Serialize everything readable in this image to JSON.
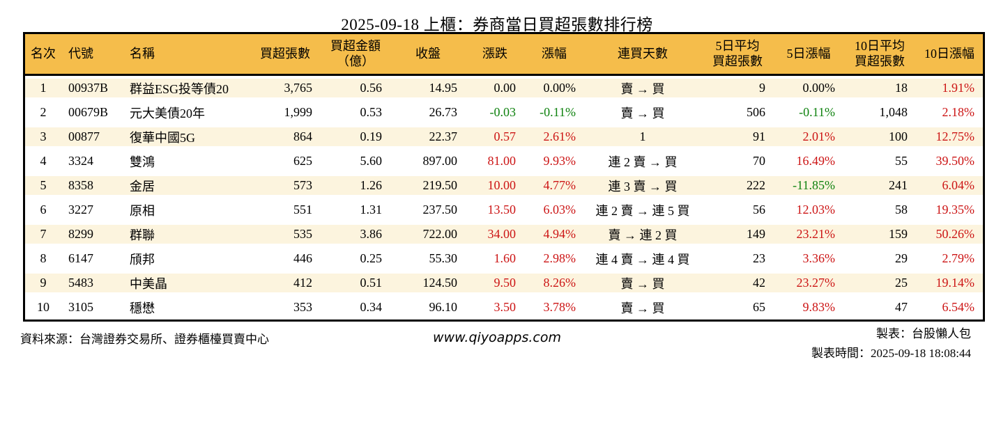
{
  "title": "2025-09-18 上櫃：券商當日買超張數排行榜",
  "colors": {
    "up_red": "#cc1414",
    "down_green": "#0f820f",
    "header_bg": "#f5bd4b",
    "row_stripe": "#fcf4de",
    "border": "#000000"
  },
  "chart_data": {
    "type": "table",
    "title": "2025-09-18 上櫃：券商當日買超張數排行榜",
    "columns": [
      {
        "key": "rank",
        "label": "名次",
        "align": "ac"
      },
      {
        "key": "code",
        "label": "代號",
        "align": "al"
      },
      {
        "key": "name",
        "label": "名稱",
        "align": "al"
      },
      {
        "key": "vol",
        "label": "買超張數",
        "align": "ar"
      },
      {
        "key": "amt",
        "label": "買超金額\n（億）",
        "align": "ar"
      },
      {
        "key": "close",
        "label": "收盤",
        "align": "ar"
      },
      {
        "key": "chg",
        "label": "漲跌",
        "align": "ar"
      },
      {
        "key": "chgp",
        "label": "漲幅",
        "align": "ar"
      },
      {
        "key": "streak",
        "label": "連買天數",
        "align": "ac"
      },
      {
        "key": "avg5",
        "label": "5日平均\n買超張數",
        "align": "ar"
      },
      {
        "key": "p5",
        "label": "5日漲幅",
        "align": "ar"
      },
      {
        "key": "avg10",
        "label": "10日平均\n買超張數",
        "align": "ar"
      },
      {
        "key": "p10",
        "label": "10日漲幅",
        "align": "ar"
      }
    ],
    "rows": [
      [
        {
          "t": "1"
        },
        {
          "t": "00937B"
        },
        {
          "t": "群益ESG投等債20"
        },
        {
          "t": "3,765"
        },
        {
          "t": "0.56"
        },
        {
          "t": "14.95"
        },
        {
          "t": "0.00"
        },
        {
          "t": "0.00%"
        },
        {
          "t": "賣 → 買"
        },
        {
          "t": "9"
        },
        {
          "t": "0.00%"
        },
        {
          "t": "18"
        },
        {
          "t": "1.91%",
          "c": "up"
        }
      ],
      [
        {
          "t": "2"
        },
        {
          "t": "00679B"
        },
        {
          "t": "元大美債20年"
        },
        {
          "t": "1,999"
        },
        {
          "t": "0.53"
        },
        {
          "t": "26.73"
        },
        {
          "t": "-0.03",
          "c": "down"
        },
        {
          "t": "-0.11%",
          "c": "down"
        },
        {
          "t": "賣 → 買"
        },
        {
          "t": "506"
        },
        {
          "t": "-0.11%",
          "c": "down"
        },
        {
          "t": "1,048"
        },
        {
          "t": "2.18%",
          "c": "up"
        }
      ],
      [
        {
          "t": "3"
        },
        {
          "t": "00877"
        },
        {
          "t": "復華中國5G"
        },
        {
          "t": "864"
        },
        {
          "t": "0.19"
        },
        {
          "t": "22.37"
        },
        {
          "t": "0.57",
          "c": "up"
        },
        {
          "t": "2.61%",
          "c": "up"
        },
        {
          "t": "1"
        },
        {
          "t": "91"
        },
        {
          "t": "2.01%",
          "c": "up"
        },
        {
          "t": "100"
        },
        {
          "t": "12.75%",
          "c": "up"
        }
      ],
      [
        {
          "t": "4"
        },
        {
          "t": "3324"
        },
        {
          "t": "雙鴻"
        },
        {
          "t": "625"
        },
        {
          "t": "5.60"
        },
        {
          "t": "897.00"
        },
        {
          "t": "81.00",
          "c": "up"
        },
        {
          "t": "9.93%",
          "c": "up"
        },
        {
          "t": "連 2 賣 → 買"
        },
        {
          "t": "70"
        },
        {
          "t": "16.49%",
          "c": "up"
        },
        {
          "t": "55"
        },
        {
          "t": "39.50%",
          "c": "up"
        }
      ],
      [
        {
          "t": "5"
        },
        {
          "t": "8358"
        },
        {
          "t": "金居"
        },
        {
          "t": "573"
        },
        {
          "t": "1.26"
        },
        {
          "t": "219.50"
        },
        {
          "t": "10.00",
          "c": "up"
        },
        {
          "t": "4.77%",
          "c": "up"
        },
        {
          "t": "連 3 賣 → 買"
        },
        {
          "t": "222"
        },
        {
          "t": "-11.85%",
          "c": "down"
        },
        {
          "t": "241"
        },
        {
          "t": "6.04%",
          "c": "up"
        }
      ],
      [
        {
          "t": "6"
        },
        {
          "t": "3227"
        },
        {
          "t": "原相"
        },
        {
          "t": "551"
        },
        {
          "t": "1.31"
        },
        {
          "t": "237.50"
        },
        {
          "t": "13.50",
          "c": "up"
        },
        {
          "t": "6.03%",
          "c": "up"
        },
        {
          "t": "連 2 賣 → 連 5 買"
        },
        {
          "t": "56"
        },
        {
          "t": "12.03%",
          "c": "up"
        },
        {
          "t": "58"
        },
        {
          "t": "19.35%",
          "c": "up"
        }
      ],
      [
        {
          "t": "7"
        },
        {
          "t": "8299"
        },
        {
          "t": "群聯"
        },
        {
          "t": "535"
        },
        {
          "t": "3.86"
        },
        {
          "t": "722.00"
        },
        {
          "t": "34.00",
          "c": "up"
        },
        {
          "t": "4.94%",
          "c": "up"
        },
        {
          "t": "賣 → 連 2 買"
        },
        {
          "t": "149"
        },
        {
          "t": "23.21%",
          "c": "up"
        },
        {
          "t": "159"
        },
        {
          "t": "50.26%",
          "c": "up"
        }
      ],
      [
        {
          "t": "8"
        },
        {
          "t": "6147"
        },
        {
          "t": "頎邦"
        },
        {
          "t": "446"
        },
        {
          "t": "0.25"
        },
        {
          "t": "55.30"
        },
        {
          "t": "1.60",
          "c": "up"
        },
        {
          "t": "2.98%",
          "c": "up"
        },
        {
          "t": "連 4 賣 → 連 4 買"
        },
        {
          "t": "23"
        },
        {
          "t": "3.36%",
          "c": "up"
        },
        {
          "t": "29"
        },
        {
          "t": "2.79%",
          "c": "up"
        }
      ],
      [
        {
          "t": "9"
        },
        {
          "t": "5483"
        },
        {
          "t": "中美晶"
        },
        {
          "t": "412"
        },
        {
          "t": "0.51"
        },
        {
          "t": "124.50"
        },
        {
          "t": "9.50",
          "c": "up"
        },
        {
          "t": "8.26%",
          "c": "up"
        },
        {
          "t": "賣 → 買"
        },
        {
          "t": "42"
        },
        {
          "t": "23.27%",
          "c": "up"
        },
        {
          "t": "25"
        },
        {
          "t": "19.14%",
          "c": "up"
        }
      ],
      [
        {
          "t": "10"
        },
        {
          "t": "3105"
        },
        {
          "t": "穩懋"
        },
        {
          "t": "353"
        },
        {
          "t": "0.34"
        },
        {
          "t": "96.10"
        },
        {
          "t": "3.50",
          "c": "up"
        },
        {
          "t": "3.78%",
          "c": "up"
        },
        {
          "t": "賣 → 買"
        },
        {
          "t": "65"
        },
        {
          "t": "9.83%",
          "c": "up"
        },
        {
          "t": "47"
        },
        {
          "t": "6.54%",
          "c": "up"
        }
      ]
    ]
  },
  "footer": {
    "source": "資料來源：台灣證券交易所、證券櫃檯買賣中心",
    "website": "www.qiyoapps.com",
    "author": "製表：台股懶人包",
    "generated_at": "製表時間：2025-09-18 18:08:44"
  }
}
